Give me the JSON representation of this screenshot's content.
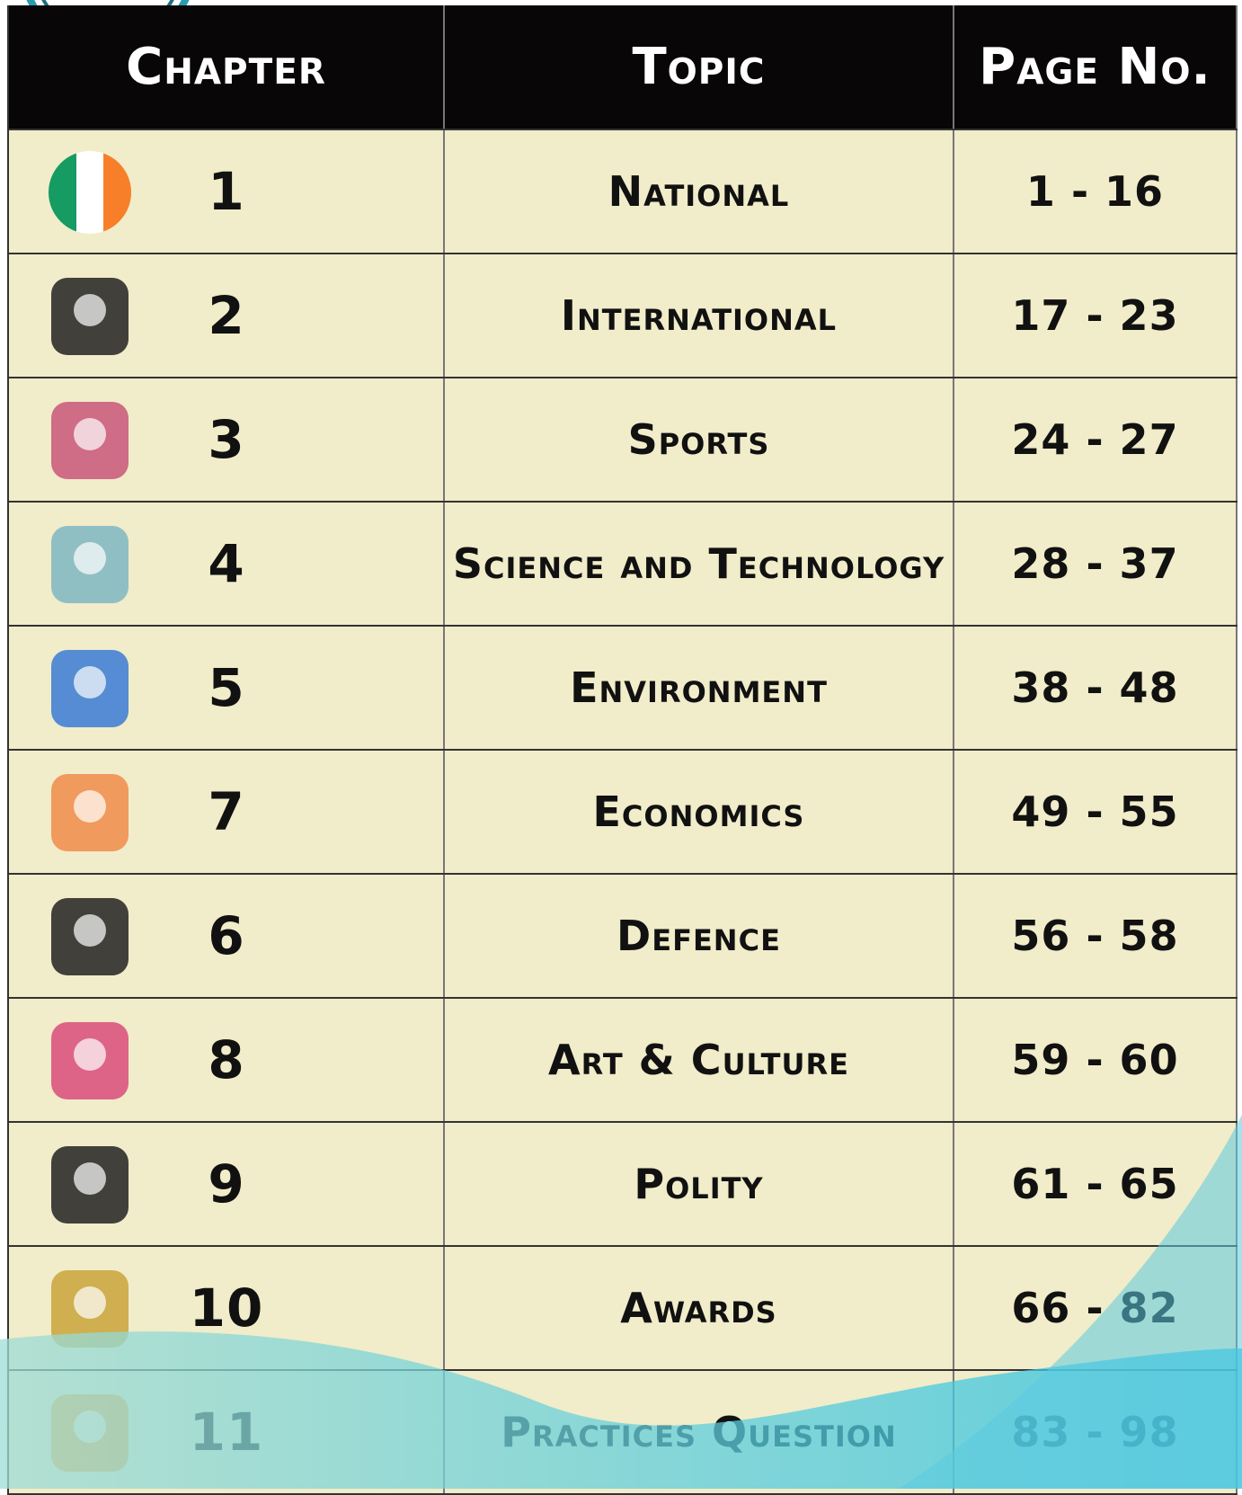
{
  "table": {
    "header": [
      "Chapter",
      "Topic",
      "Page No."
    ],
    "rows": [
      [
        "1",
        "National",
        "1 - 16"
      ],
      [
        "2",
        "International",
        "17 - 23"
      ],
      [
        "3",
        "Sports",
        "24 - 27"
      ],
      [
        "4",
        "Science and Technology",
        "28 - 37"
      ],
      [
        "5",
        "Environment",
        "38 - 48"
      ],
      [
        "7",
        "Economics",
        "49 - 55"
      ],
      [
        "6",
        "Defence",
        "56 - 58"
      ],
      [
        "8",
        "Art & Culture",
        "59 - 60"
      ],
      [
        "9",
        "Polity",
        "61 - 65"
      ],
      [
        "10",
        "Awards",
        "66 - 82"
      ],
      [
        "11",
        "Practices Question",
        "83 - 98"
      ]
    ]
  }
}
